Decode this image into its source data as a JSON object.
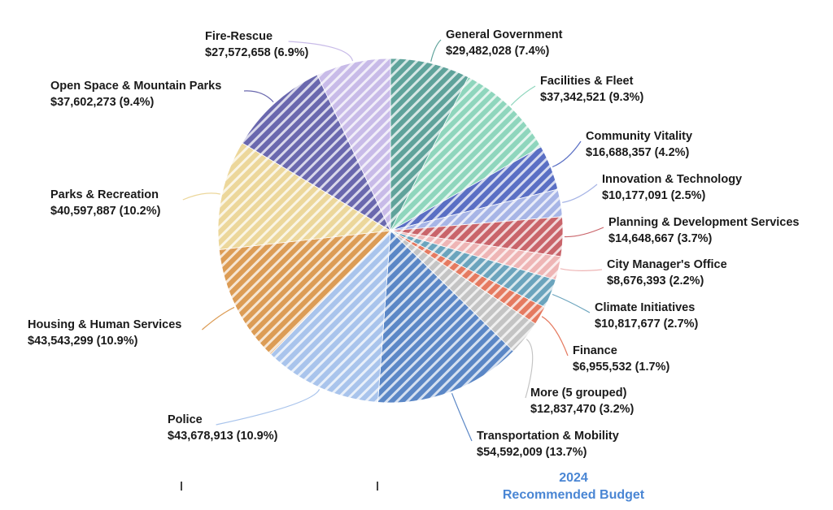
{
  "chart_data": {
    "type": "pie",
    "title": "",
    "caption": {
      "year": "2024",
      "subtitle": "Recommended Budget"
    },
    "slices": [
      {
        "name": "General Government",
        "value_label": "$29,482,028 (7.4%)",
        "value": 29482028,
        "percent": 7.4,
        "color": "#5fa39b"
      },
      {
        "name": "Facilities & Fleet",
        "value_label": "$37,342,521 (9.3%)",
        "value": 37342521,
        "percent": 9.3,
        "color": "#8fd6bd"
      },
      {
        "name": "Community Vitality",
        "value_label": "$16,688,357 (4.2%)",
        "value": 16688357,
        "percent": 4.2,
        "color": "#5a6fc4"
      },
      {
        "name": "Innovation & Technology",
        "value_label": "$10,177,091 (2.5%)",
        "value": 10177091,
        "percent": 2.5,
        "color": "#a7b5e6"
      },
      {
        "name": "Planning & Development Services",
        "value_label": "$14,648,667 (3.7%)",
        "value": 14648667,
        "percent": 3.7,
        "color": "#c9646a"
      },
      {
        "name": "City Manager's Office",
        "value_label": "$8,676,393 (2.2%)",
        "value": 8676393,
        "percent": 2.2,
        "color": "#eeb5b5"
      },
      {
        "name": "Climate Initiatives",
        "value_label": "$10,817,677 (2.7%)",
        "value": 10817677,
        "percent": 2.7,
        "color": "#6ba4bd"
      },
      {
        "name": "Finance",
        "value_label": "$6,955,532 (1.7%)",
        "value": 6955532,
        "percent": 1.7,
        "color": "#e57a60"
      },
      {
        "name": "More (5 grouped)",
        "value_label": "$12,837,470 (3.2%)",
        "value": 12837470,
        "percent": 3.2,
        "color": "#c4c4c4"
      },
      {
        "name": "Transportation & Mobility",
        "value_label": "$54,592,009 (13.7%)",
        "value": 54592009,
        "percent": 13.7,
        "color": "#5b87c6"
      },
      {
        "name": "Police",
        "value_label": "$43,678,913 (10.9%)",
        "value": 43678913,
        "percent": 10.9,
        "color": "#a9c4ec"
      },
      {
        "name": "Housing & Human Services",
        "value_label": "$43,543,299 (10.9%)",
        "value": 43543299,
        "percent": 10.9,
        "color": "#dc9c55"
      },
      {
        "name": "Parks & Recreation",
        "value_label": "$40,597,887 (10.2%)",
        "value": 40597887,
        "percent": 10.2,
        "color": "#ecd79b"
      },
      {
        "name": "Open Space & Mountain Parks",
        "value_label": "$37,602,273 (9.4%)",
        "value": 37602273,
        "percent": 9.4,
        "color": "#6a68ae"
      },
      {
        "name": "Fire-Rescue",
        "value_label": "$27,572,658 (6.9%)",
        "value": 27572658,
        "percent": 6.9,
        "color": "#c8bbe8"
      }
    ],
    "legend": "none",
    "start_angle_deg": 0,
    "direction": "clockwise",
    "fill_pattern": "diagonal-stripes"
  }
}
